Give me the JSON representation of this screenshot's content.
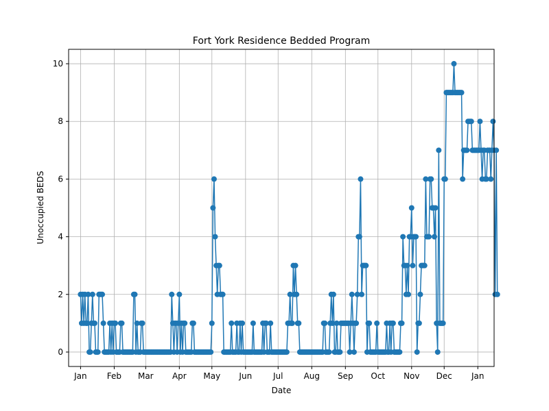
{
  "chart_data": {
    "type": "line",
    "title": "Fort York Residence Bedded Program",
    "xlabel": "Date",
    "ylabel": "Unoccupied BEDS",
    "xlim": [
      "2023-12-21",
      "2025-01-16"
    ],
    "ylim": [
      -0.5,
      10.5
    ],
    "grid": true,
    "line_color": "#1f77b4",
    "x_ticks": [
      {
        "date": "2024-01-01",
        "label": "Jan"
      },
      {
        "date": "2024-02-01",
        "label": "Feb"
      },
      {
        "date": "2024-03-01",
        "label": "Mar"
      },
      {
        "date": "2024-04-01",
        "label": "Apr"
      },
      {
        "date": "2024-05-01",
        "label": "May"
      },
      {
        "date": "2024-06-01",
        "label": "Jun"
      },
      {
        "date": "2024-07-01",
        "label": "Jul"
      },
      {
        "date": "2024-08-01",
        "label": "Aug"
      },
      {
        "date": "2024-09-01",
        "label": "Sep"
      },
      {
        "date": "2024-10-01",
        "label": "Oct"
      },
      {
        "date": "2024-11-01",
        "label": "Nov"
      },
      {
        "date": "2024-12-01",
        "label": "Dec"
      },
      {
        "date": "2025-01-01",
        "label": "Jan"
      }
    ],
    "y_ticks": [
      0,
      2,
      4,
      6,
      8,
      10
    ],
    "series": [
      {
        "start_date": "2024-01-01",
        "values": [
          2,
          1,
          2,
          1,
          2,
          1,
          1,
          2,
          0,
          0,
          1,
          2,
          1,
          1,
          0,
          0,
          0,
          2,
          2,
          2,
          2,
          1,
          0,
          0,
          0,
          0,
          0,
          1,
          0,
          1,
          0,
          1,
          1,
          0,
          0,
          0,
          0,
          1,
          1,
          0,
          0,
          0,
          0,
          0,
          0,
          0,
          0,
          0,
          0,
          2,
          2,
          0,
          1,
          0,
          0,
          0,
          1,
          1,
          0,
          0,
          0,
          0,
          0,
          0,
          0,
          0,
          0,
          0,
          0,
          0,
          0,
          0,
          0,
          0,
          0,
          0,
          0,
          0,
          0,
          0,
          0,
          0,
          0,
          0,
          2,
          1,
          0,
          1,
          1,
          0,
          1,
          2,
          0,
          1,
          0,
          1,
          1,
          0,
          0,
          0,
          0,
          0,
          0,
          1,
          1,
          0,
          0,
          0,
          0,
          0,
          0,
          0,
          0,
          0,
          0,
          0,
          0,
          0,
          0,
          0,
          0,
          1,
          5,
          6,
          4,
          3,
          2,
          3,
          3,
          2,
          2,
          2,
          0,
          0,
          0,
          0,
          0,
          0,
          0,
          1,
          0,
          0,
          0,
          0,
          1,
          0,
          0,
          1,
          0,
          1,
          0,
          0,
          0,
          0,
          0,
          0,
          0,
          0,
          0,
          1,
          0,
          0,
          0,
          0,
          0,
          0,
          0,
          0,
          1,
          0,
          1,
          1,
          0,
          0,
          0,
          1,
          0,
          0,
          0,
          0,
          0,
          0,
          0,
          0,
          0,
          0,
          0,
          0,
          0,
          0,
          0,
          1,
          1,
          2,
          1,
          1,
          3,
          2,
          3,
          2,
          1,
          1,
          0,
          0,
          0,
          0,
          0,
          0,
          0,
          0,
          0,
          0,
          0,
          0,
          0,
          0,
          0,
          0,
          0,
          0,
          0,
          0,
          0,
          0,
          1,
          1,
          0,
          0,
          0,
          0,
          1,
          2,
          1,
          2,
          0,
          0,
          1,
          0,
          0,
          0,
          1,
          1,
          1,
          1,
          1,
          1,
          1,
          1,
          0,
          1,
          2,
          1,
          0,
          1,
          1,
          2,
          4,
          4,
          6,
          2,
          3,
          3,
          3,
          3,
          0,
          1,
          1,
          0,
          0,
          0,
          0,
          0,
          0,
          1,
          0,
          0,
          0,
          0,
          0,
          0,
          0,
          0,
          1,
          0,
          0,
          1,
          0,
          1,
          1,
          0,
          0,
          0,
          0,
          0,
          0,
          1,
          1,
          4,
          3,
          3,
          2,
          3,
          2,
          4,
          4,
          5,
          3,
          4,
          4,
          4,
          0,
          1,
          1,
          2,
          3,
          3,
          3,
          3,
          6,
          4,
          4,
          4,
          6,
          6,
          5,
          5,
          4,
          5,
          1,
          0,
          7,
          1,
          1,
          1,
          1,
          6,
          6,
          9,
          9,
          9,
          9,
          9,
          9,
          9,
          10,
          9,
          9,
          9,
          9,
          9,
          9,
          9,
          6,
          7,
          7,
          7,
          7,
          8,
          8,
          8,
          8,
          7,
          7,
          7,
          7,
          7,
          7,
          7,
          8,
          7,
          6,
          7,
          7,
          6,
          6,
          7,
          7,
          7,
          6,
          7,
          8,
          7,
          2,
          7,
          2
        ]
      }
    ]
  }
}
